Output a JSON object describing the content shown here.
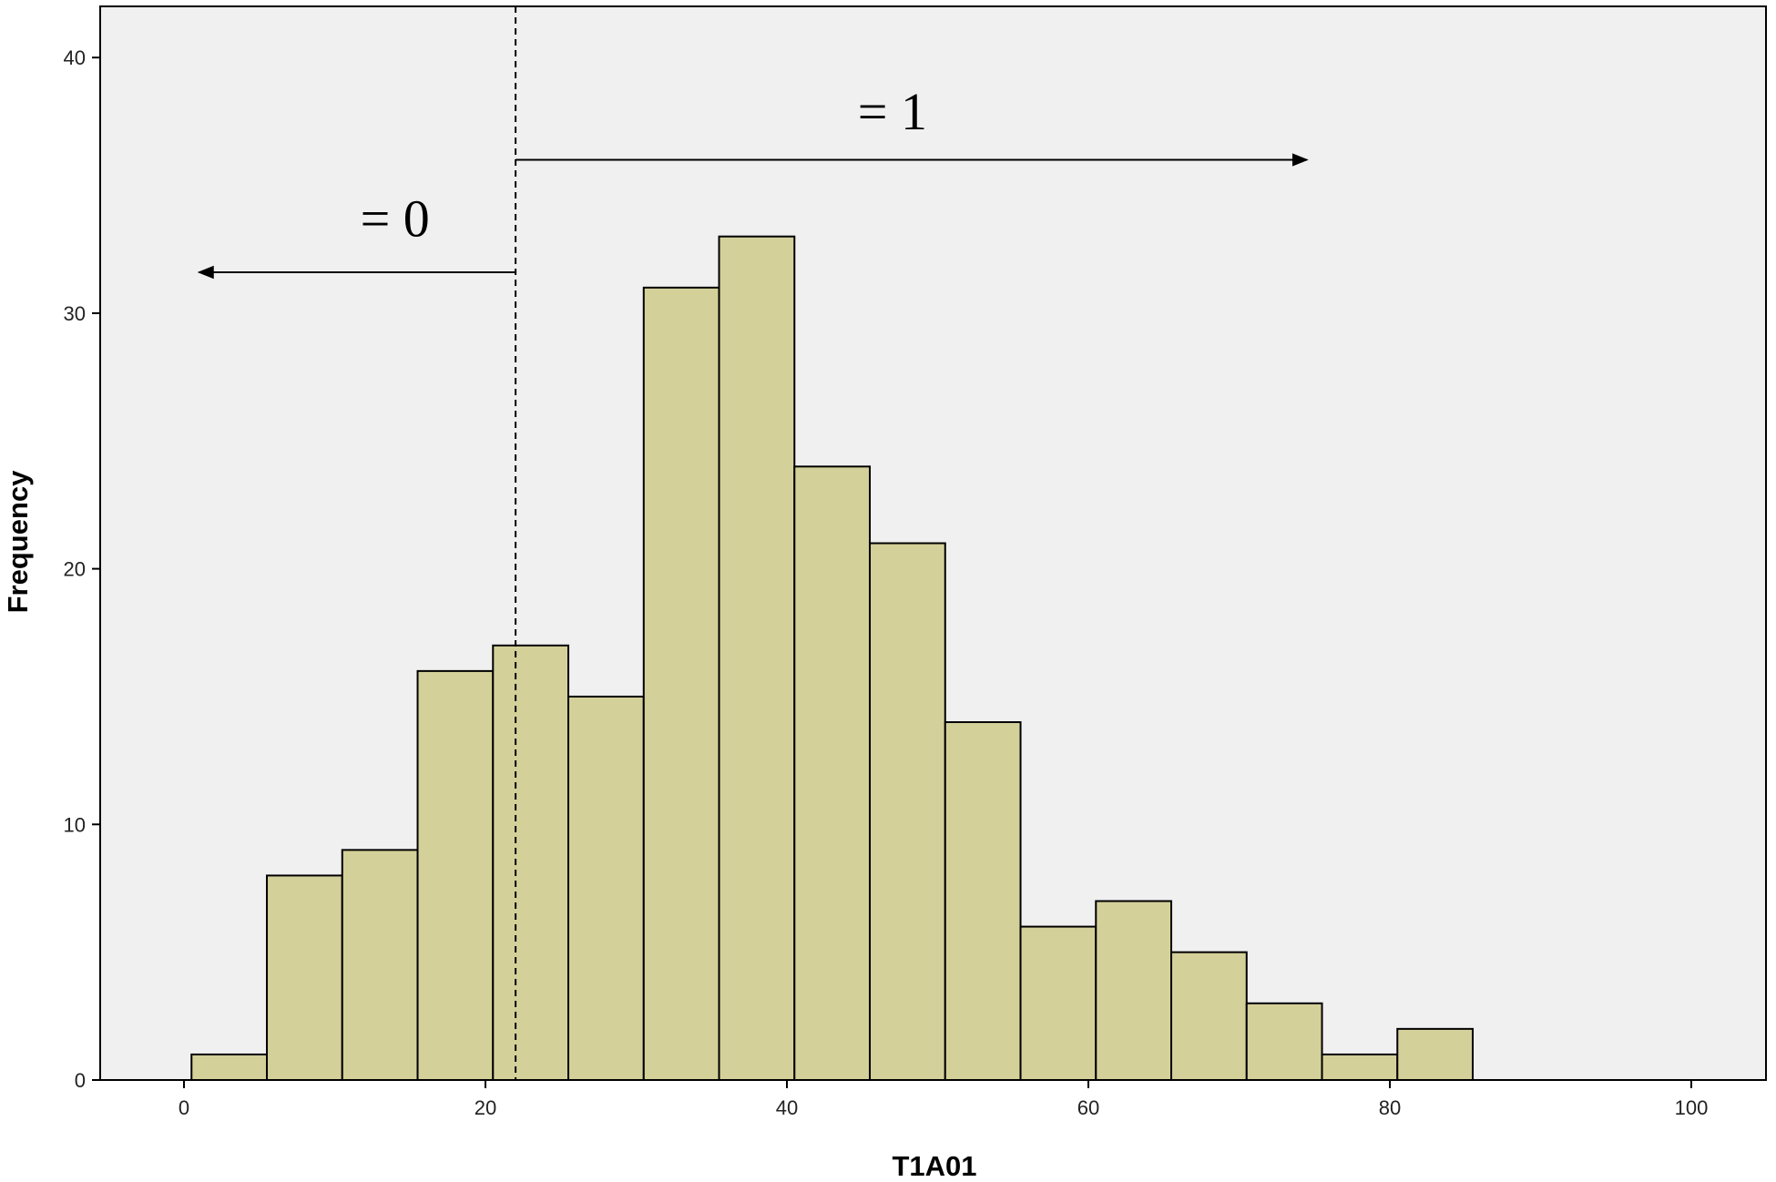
{
  "chart_data": {
    "type": "bar",
    "subtype": "histogram",
    "xlabel": "T1A01",
    "ylabel": "Frequency",
    "xlim": [
      -5.5,
      105
    ],
    "ylim": [
      0,
      42
    ],
    "xticks": [
      0,
      20,
      40,
      60,
      80,
      100
    ],
    "yticks": [
      0,
      10,
      20,
      30,
      40
    ],
    "bin_width": 5,
    "bins": [
      {
        "start": 0.5,
        "end": 5.5,
        "value": 1
      },
      {
        "start": 5.5,
        "end": 10.5,
        "value": 8
      },
      {
        "start": 10.5,
        "end": 15.5,
        "value": 9
      },
      {
        "start": 15.5,
        "end": 20.5,
        "value": 16
      },
      {
        "start": 20.5,
        "end": 25.5,
        "value": 17
      },
      {
        "start": 25.5,
        "end": 30.5,
        "value": 15
      },
      {
        "start": 30.5,
        "end": 35.5,
        "value": 31
      },
      {
        "start": 35.5,
        "end": 40.5,
        "value": 33
      },
      {
        "start": 40.5,
        "end": 45.5,
        "value": 24
      },
      {
        "start": 45.5,
        "end": 50.5,
        "value": 21
      },
      {
        "start": 50.5,
        "end": 55.5,
        "value": 14
      },
      {
        "start": 55.5,
        "end": 60.5,
        "value": 6
      },
      {
        "start": 60.5,
        "end": 65.5,
        "value": 7
      },
      {
        "start": 65.5,
        "end": 70.5,
        "value": 5
      },
      {
        "start": 70.5,
        "end": 75.5,
        "value": 3
      },
      {
        "start": 75.5,
        "end": 80.5,
        "value": 1
      },
      {
        "start": 80.5,
        "end": 85.5,
        "value": 2
      }
    ],
    "cutoff": 22,
    "annotations": [
      {
        "text": "= 0",
        "direction": "left",
        "x": 14,
        "y": 33,
        "arrow_from": 22,
        "arrow_to": 1,
        "arrow_y": 31.6
      },
      {
        "text": "= 1",
        "direction": "right",
        "x": 47,
        "y": 37.2,
        "arrow_from": 22,
        "arrow_to": 74.5,
        "arrow_y": 36
      }
    ],
    "grid": false,
    "colors": {
      "bar_fill": "#d4d09a",
      "bar_stroke": "#000000",
      "plot_background": "#f0f0f0",
      "page_background": "#ffffff"
    }
  }
}
